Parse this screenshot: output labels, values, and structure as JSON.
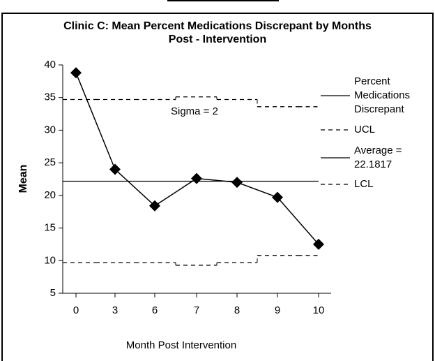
{
  "chart_data": {
    "type": "line",
    "title": "Clinic C: Mean Percent Medications Discrepant by Months Post - Intervention",
    "x_label": "Month Post Intervention",
    "y_label": "Mean",
    "annotation": "Sigma = 2",
    "categories": [
      "0",
      "3",
      "6",
      "7",
      "8",
      "9",
      "10"
    ],
    "series": [
      {
        "name": "Percent Medications Discrepant",
        "color": "#000000",
        "style": "solid",
        "marker": "diamond",
        "values": [
          38.8,
          24.0,
          18.4,
          22.6,
          22.0,
          19.7,
          12.5
        ]
      },
      {
        "name": "UCL",
        "color": "#000000",
        "style": "dashed",
        "step": true,
        "values": [
          34.7,
          34.7,
          34.7,
          35.1,
          34.7,
          33.6,
          33.6
        ]
      },
      {
        "name": "Average = 22.1817",
        "color": "#000000",
        "style": "solid",
        "step": true,
        "values": [
          22.1817,
          22.1817,
          22.1817,
          22.1817,
          22.1817,
          22.1817,
          22.1817
        ]
      },
      {
        "name": "LCL",
        "color": "#000000",
        "style": "dashed",
        "step": true,
        "values": [
          9.7,
          9.7,
          9.7,
          9.3,
          9.7,
          10.8,
          10.8
        ]
      }
    ],
    "ylim": [
      5,
      40
    ],
    "yticks": [
      5,
      10,
      15,
      20,
      25,
      30,
      35,
      40
    ],
    "legend": "right",
    "grid": false
  }
}
